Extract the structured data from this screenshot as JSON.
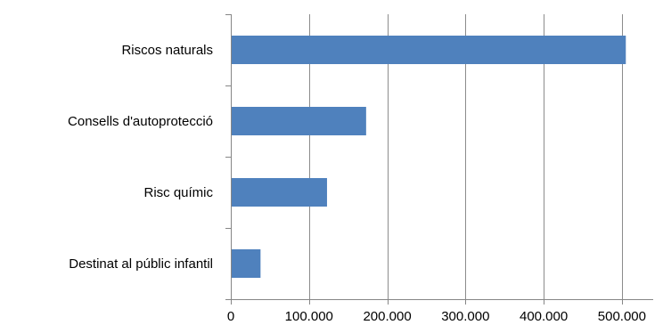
{
  "chart_data": {
    "type": "bar",
    "orientation": "horizontal",
    "categories": [
      "Riscos naturals",
      "Consells d'autoprotecció",
      "Risc químic",
      "Destinat al públic infantil"
    ],
    "values": [
      505000,
      173000,
      123000,
      38000
    ],
    "xlim": [
      0,
      540000
    ],
    "x_ticks": [
      0,
      100000,
      200000,
      300000,
      400000,
      500000
    ],
    "x_tick_labels": [
      "0",
      "100.000",
      "200.000",
      "300.000",
      "400.000",
      "500.000"
    ],
    "grid": "vertical",
    "legend": "none",
    "title": "",
    "xlabel": "",
    "ylabel": "",
    "colors": {
      "bar": "#4f81bd",
      "grid": "#8c8c8c",
      "axis": "#868686"
    }
  }
}
